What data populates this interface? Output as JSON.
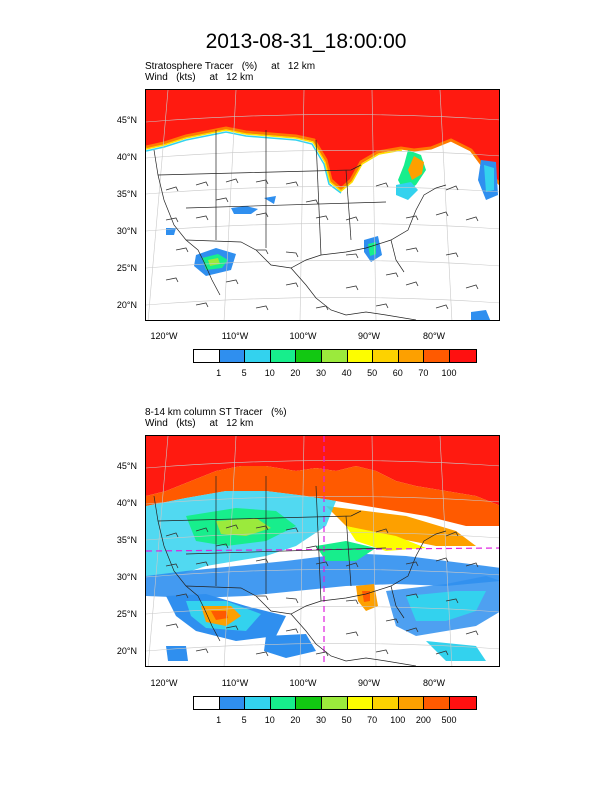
{
  "title": "2013-08-31_18:00:00",
  "panels": [
    {
      "line1": "Stratosphere Tracer   (%)     at   12 km",
      "line2": "Wind   (kts)     at   12 km",
      "lat_labels": [
        "45°N",
        "40°N",
        "35°N",
        "30°N",
        "25°N",
        "20°N"
      ],
      "lon_labels": [
        "120°W",
        "110°W",
        "100°W",
        "90°W",
        "80°W"
      ],
      "colorbar": {
        "colors": [
          "#ffffff",
          "#2f8fef",
          "#33d2ee",
          "#17ee8c",
          "#12c812",
          "#9bea3c",
          "#fdfd00",
          "#fdd200",
          "#fda000",
          "#ff5a00",
          "#ff1010"
        ],
        "labels": [
          "1",
          "5",
          "10",
          "20",
          "30",
          "40",
          "50",
          "60",
          "70",
          "100"
        ]
      }
    },
    {
      "line1": "8-14 km column ST Tracer   (%)",
      "line2": "Wind   (kts)     at   12 km",
      "lat_labels": [
        "45°N",
        "40°N",
        "35°N",
        "30°N",
        "25°N",
        "20°N"
      ],
      "lon_labels": [
        "120°W",
        "110°W",
        "100°W",
        "90°W",
        "80°W"
      ],
      "colorbar": {
        "colors": [
          "#ffffff",
          "#2f8fef",
          "#33d2ee",
          "#17ee8c",
          "#12c812",
          "#9bea3c",
          "#fdfd00",
          "#fdd200",
          "#fda000",
          "#ff5a00",
          "#ff1010"
        ],
        "labels": [
          "1",
          "5",
          "10",
          "20",
          "30",
          "50",
          "70",
          "100",
          "200",
          "500"
        ]
      }
    }
  ]
}
